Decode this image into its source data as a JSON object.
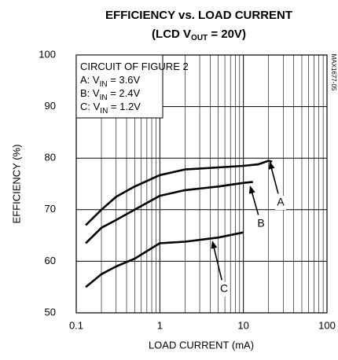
{
  "chart_data": {
    "type": "line",
    "title": "EFFICIENCY vs. LOAD CURRENT",
    "subtitle": {
      "text": "(LCD V",
      "sub": "OUT",
      "after": " = 20V)"
    },
    "xlabel": "LOAD CURRENT (mA)",
    "ylabel": "EFFICIENCY (%)",
    "figure_id": "MAX1677-05",
    "xscale": "log",
    "xlim": [
      0.1,
      100
    ],
    "xticks": [
      0.1,
      1,
      10,
      100
    ],
    "xminor": [
      0.2,
      0.3,
      0.4,
      0.5,
      0.6,
      0.7,
      0.8,
      0.9,
      2,
      3,
      4,
      5,
      6,
      7,
      8,
      9,
      20,
      30,
      40,
      50,
      60,
      70,
      80,
      90
    ],
    "ylim": [
      50,
      100
    ],
    "yticks": [
      50,
      60,
      70,
      80,
      90,
      100
    ],
    "grid": true,
    "color": "#000000",
    "notes": [
      {
        "text": "CIRCUIT OF FIGURE 2"
      },
      {
        "text": "A: V",
        "sub": "IN",
        "after": " = 3.6V"
      },
      {
        "text": "B: V",
        "sub": "IN",
        "after": " = 2.4V"
      },
      {
        "text": "C: V",
        "sub": "IN",
        "after": " = 1.2V"
      }
    ],
    "series": [
      {
        "name": "A",
        "color": "#000000",
        "x": [
          0.13,
          0.2,
          0.3,
          0.5,
          1,
          2,
          5,
          10,
          15,
          20,
          22
        ],
        "values": [
          67,
          70,
          72.5,
          74.5,
          76.7,
          77.8,
          78.2,
          78.5,
          78.8,
          79.5,
          79.3
        ]
      },
      {
        "name": "B",
        "color": "#000000",
        "x": [
          0.13,
          0.2,
          0.3,
          0.5,
          1,
          2,
          5,
          10,
          13
        ],
        "values": [
          63.5,
          66.5,
          68,
          70,
          72.7,
          73.8,
          74.5,
          75.2,
          75.4
        ]
      },
      {
        "name": "C",
        "color": "#000000",
        "x": [
          0.13,
          0.2,
          0.3,
          0.5,
          1,
          2,
          5,
          10
        ],
        "values": [
          55,
          57.5,
          59,
          60.5,
          63.5,
          63.8,
          64.6,
          65.6
        ]
      }
    ]
  }
}
